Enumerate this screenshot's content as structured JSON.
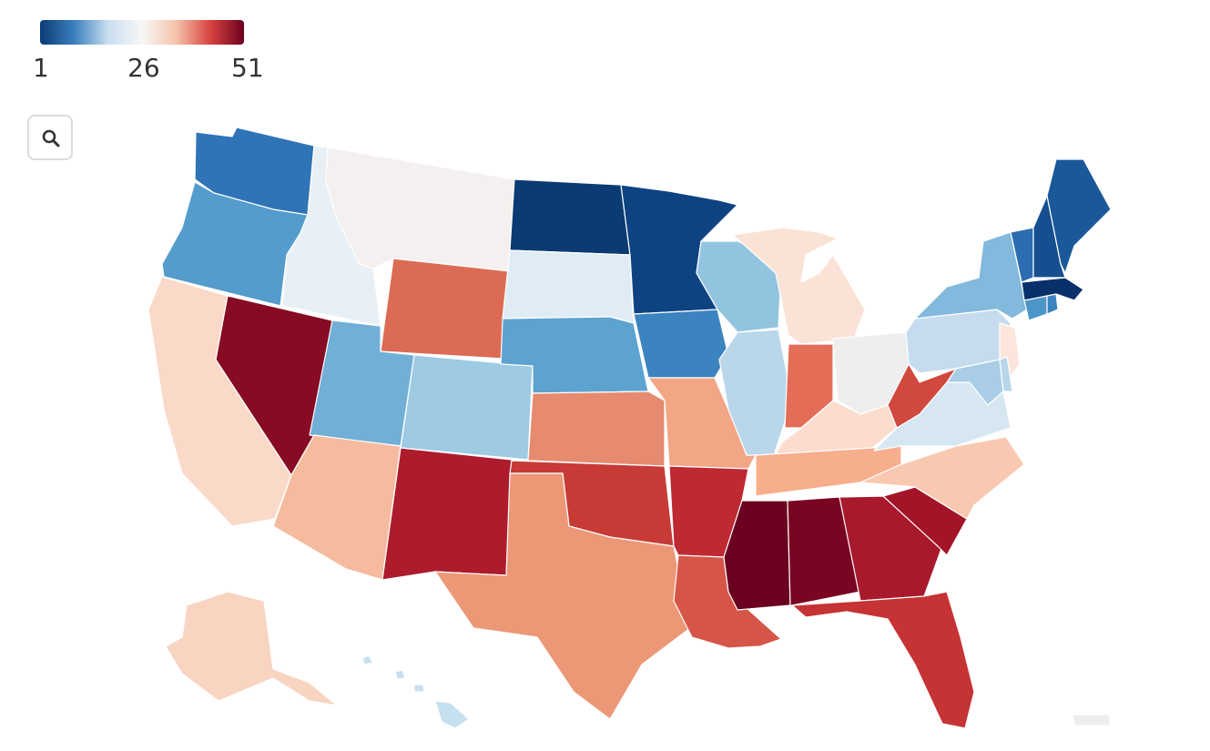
{
  "legend": {
    "min_label": "1",
    "mid_label": "26",
    "max_label": "51",
    "colors": [
      "#0b3b75",
      "#3a7ebd",
      "#c9def0",
      "#f7f7f7",
      "#f6c4ab",
      "#d9433f",
      "#6b0020"
    ]
  },
  "controls": {
    "search_icon": "magnifier-icon"
  },
  "map_data": {
    "type": "choropleth",
    "region": "United States",
    "scale": {
      "min": 1,
      "max": 51
    },
    "states": [
      {
        "code": "WA",
        "color": "#2f74b6"
      },
      {
        "code": "OR",
        "color": "#549ccb"
      },
      {
        "code": "CA",
        "color": "#fbd9c8"
      },
      {
        "code": "ID",
        "color": "#e8f0f5"
      },
      {
        "code": "NV",
        "color": "#870b23"
      },
      {
        "code": "MT",
        "color": "#f4f0ef"
      },
      {
        "code": "WY",
        "color": "#dc6b56"
      },
      {
        "code": "UT",
        "color": "#71afd6"
      },
      {
        "code": "AZ",
        "color": "#f6bb9f"
      },
      {
        "code": "CO",
        "color": "#9ecae3"
      },
      {
        "code": "NM",
        "color": "#ad1b2c"
      },
      {
        "code": "ND",
        "color": "#0b3b72"
      },
      {
        "code": "SD",
        "color": "#e0ecf3"
      },
      {
        "code": "NE",
        "color": "#5da3cf"
      },
      {
        "code": "KS",
        "color": "#e68a70"
      },
      {
        "code": "OK",
        "color": "#c73a36"
      },
      {
        "code": "TX",
        "color": "#ec9877"
      },
      {
        "code": "MN",
        "color": "#0e4382"
      },
      {
        "code": "IA",
        "color": "#3c84bf"
      },
      {
        "code": "MO",
        "color": "#f2a685"
      },
      {
        "code": "AR",
        "color": "#be2932"
      },
      {
        "code": "LA",
        "color": "#d65549"
      },
      {
        "code": "WI",
        "color": "#92c4e0"
      },
      {
        "code": "IL",
        "color": "#bad7ea"
      },
      {
        "code": "MI",
        "color": "#fbe2d6"
      },
      {
        "code": "IN",
        "color": "#e36d56"
      },
      {
        "code": "OH",
        "color": "#eeeeef"
      },
      {
        "code": "KY",
        "color": "#fbdccd"
      },
      {
        "code": "TN",
        "color": "#f7ae8c"
      },
      {
        "code": "MS",
        "color": "#6b0020"
      },
      {
        "code": "AL",
        "color": "#7a0522"
      },
      {
        "code": "GA",
        "color": "#a8192c"
      },
      {
        "code": "FL",
        "color": "#c63334"
      },
      {
        "code": "SC",
        "color": "#a31428"
      },
      {
        "code": "NC",
        "color": "#f9c8b1"
      },
      {
        "code": "VA",
        "color": "#d6e7f2"
      },
      {
        "code": "WV",
        "color": "#d1483e"
      },
      {
        "code": "PA",
        "color": "#c6dcee"
      },
      {
        "code": "NY",
        "color": "#82b9dc"
      },
      {
        "code": "NJ",
        "color": "#fce5da"
      },
      {
        "code": "MD",
        "color": "#a9cde6"
      },
      {
        "code": "DE",
        "color": "#b8d6ea"
      },
      {
        "code": "CT",
        "color": "#4c95c8"
      },
      {
        "code": "RI",
        "color": "#3b83c0"
      },
      {
        "code": "MA",
        "color": "#08306b"
      },
      {
        "code": "VT",
        "color": "#2a6db0"
      },
      {
        "code": "NH",
        "color": "#154f8f"
      },
      {
        "code": "ME",
        "color": "#1a5899"
      },
      {
        "code": "AK",
        "color": "#f8d4c1"
      },
      {
        "code": "HI",
        "color": "#c7e0ef"
      },
      {
        "code": "PR",
        "color": "#eeeeee"
      }
    ]
  }
}
